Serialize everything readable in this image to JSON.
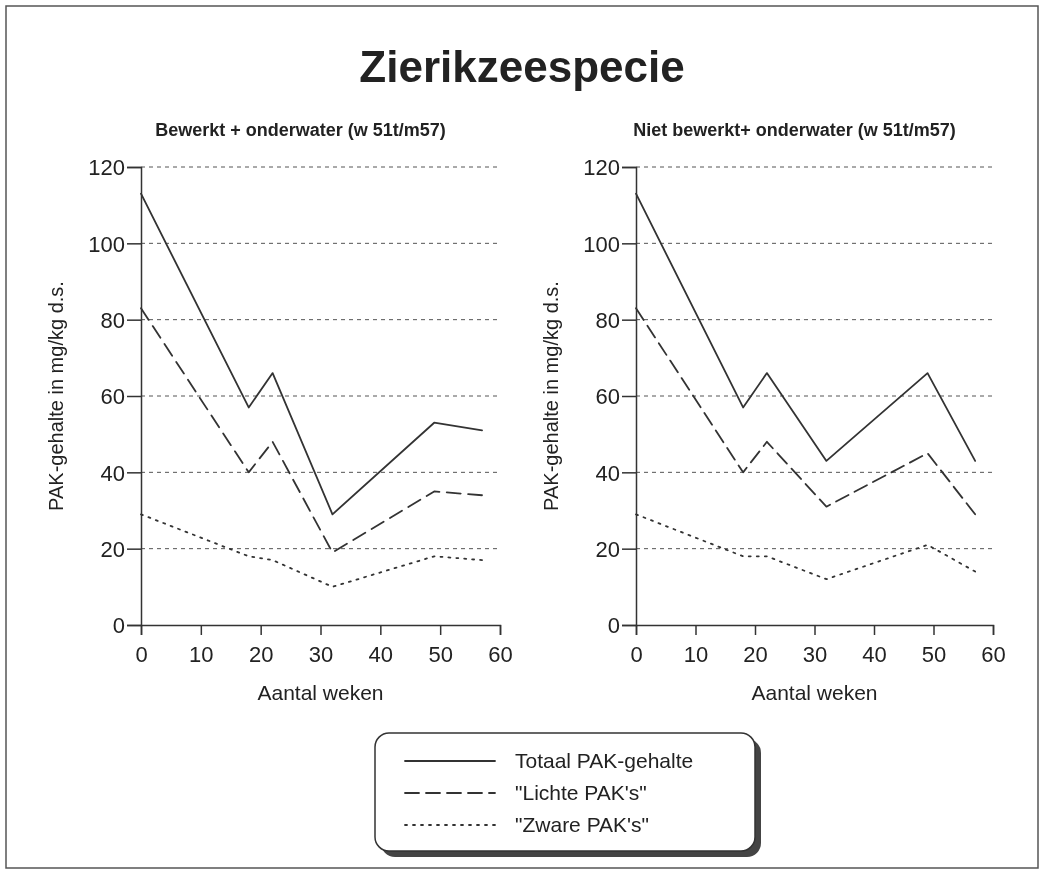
{
  "chart_data": [
    {
      "type": "line",
      "title": "Zierikzeespecie",
      "subtitle": "Bewerkt + onderwater (w 51t/m57)",
      "xlabel": "Aantal weken",
      "ylabel": "PAK-gehalte in mg/kg d.s.",
      "xlim": [
        0,
        60
      ],
      "xticks": [
        0,
        10,
        20,
        30,
        40,
        50,
        60
      ],
      "ylim": [
        0,
        120
      ],
      "yticks": [
        0,
        20,
        40,
        60,
        80,
        100,
        120
      ],
      "grid": "y",
      "legend": false,
      "marker": "none",
      "x": [
        0,
        18,
        22,
        32,
        49,
        57
      ],
      "series": [
        {
          "color": "#333333",
          "line_style": "solid",
          "values": [
            113,
            57,
            66,
            29,
            53,
            51
          ]
        },
        {
          "color": "#333333",
          "line_style": "dashed",
          "values": [
            83,
            40,
            48,
            19,
            35,
            34
          ]
        },
        {
          "color": "#333333",
          "line_style": "dotted",
          "values": [
            29,
            18,
            17,
            10,
            18,
            17
          ]
        }
      ]
    },
    {
      "type": "line",
      "subtitle": "Niet bewerkt+ onderwater (w 51t/m57)",
      "xlabel": "Aantal weken",
      "ylabel": "PAK-gehalte in mg/kg d.s.",
      "xlim": [
        0,
        60
      ],
      "xticks": [
        0,
        10,
        20,
        30,
        40,
        50,
        60
      ],
      "ylim": [
        0,
        120
      ],
      "yticks": [
        0,
        20,
        40,
        60,
        80,
        100,
        120
      ],
      "grid": "y",
      "legend": "bottom",
      "marker": "none",
      "x": [
        0,
        18,
        22,
        32,
        49,
        57
      ],
      "series": [
        {
          "name": "Totaal PAK-gehalte",
          "color": "#333333",
          "line_style": "solid",
          "values": [
            113,
            57,
            66,
            43,
            66,
            43
          ]
        },
        {
          "name": "\"Lichte PAK's\"",
          "color": "#333333",
          "line_style": "dashed",
          "values": [
            83,
            40,
            48,
            31,
            45,
            29
          ]
        },
        {
          "name": "\"Zware PAK's\"",
          "color": "#333333",
          "line_style": "dotted",
          "values": [
            29,
            18,
            18,
            12,
            21,
            14
          ]
        }
      ]
    }
  ]
}
